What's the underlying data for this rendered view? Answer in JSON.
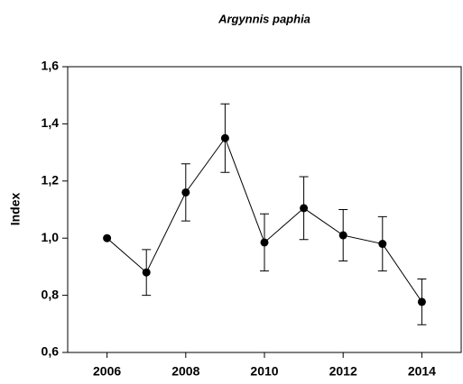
{
  "chart_data": {
    "type": "line",
    "title": "Argynnis paphia",
    "ylabel": "Index",
    "x": [
      2006,
      2007,
      2008,
      2009,
      2010,
      2011,
      2012,
      2013,
      2014
    ],
    "series": [
      {
        "color": "#000000",
        "values": [
          1.0,
          0.88,
          1.16,
          1.35,
          0.985,
          1.105,
          1.01,
          0.98,
          0.777
        ],
        "errors": [
          null,
          0.08,
          0.1,
          0.12,
          0.1,
          0.11,
          0.09,
          0.095,
          0.08
        ]
      }
    ],
    "xlim": [
      2005,
      2015
    ],
    "xticks": [
      2006,
      2008,
      2010,
      2012,
      2014
    ],
    "ylim": [
      0.6,
      1.6
    ],
    "yticks": [
      {
        "value": 0.6,
        "label": "0,6"
      },
      {
        "value": 0.8,
        "label": "0,8"
      },
      {
        "value": 1.0,
        "label": "1,0"
      },
      {
        "value": 1.2,
        "label": "1,2"
      },
      {
        "value": 1.4,
        "label": "1,4"
      },
      {
        "value": 1.6,
        "label": "1,6"
      }
    ],
    "grid": false
  }
}
